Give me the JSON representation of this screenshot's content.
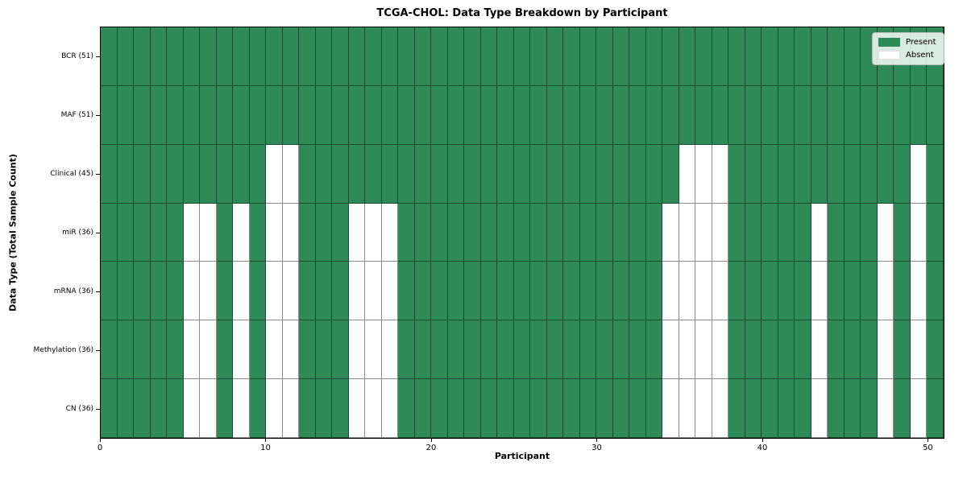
{
  "chart_data": {
    "type": "heatmap",
    "title": "TCGA-CHOL: Data Type Breakdown by Participant",
    "xlabel": "Participant",
    "ylabel": "Data Type (Total Sample Count)",
    "n_participants": 51,
    "xlim": [
      0,
      51
    ],
    "x_ticks": [
      0,
      10,
      20,
      30,
      40,
      50
    ],
    "grid": "cell-edges",
    "legend_position": "upper-right",
    "legend": {
      "present_label": "Present",
      "absent_label": "Absent"
    },
    "colors": {
      "present": "#2e8b57",
      "absent": "#ffffff",
      "cell_edge": "rgba(0,0,0,0.45)"
    },
    "rows": [
      {
        "name": "BCR",
        "label": "BCR (51)",
        "total": 51,
        "absent_participants": []
      },
      {
        "name": "MAF",
        "label": "MAF (51)",
        "total": 51,
        "absent_participants": []
      },
      {
        "name": "Clinical",
        "label": "Clinical (45)",
        "total": 45,
        "absent_participants": [
          10,
          11,
          35,
          36,
          37,
          49
        ]
      },
      {
        "name": "miR",
        "label": "miR (36)",
        "total": 36,
        "absent_participants": [
          5,
          6,
          8,
          10,
          11,
          15,
          16,
          17,
          34,
          35,
          36,
          37,
          43,
          47,
          49
        ]
      },
      {
        "name": "mRNA",
        "label": "mRNA (36)",
        "total": 36,
        "absent_participants": [
          5,
          6,
          8,
          10,
          11,
          15,
          16,
          17,
          34,
          35,
          36,
          37,
          43,
          47,
          49
        ]
      },
      {
        "name": "Methylation",
        "label": "Methylation (36)",
        "total": 36,
        "absent_participants": [
          5,
          6,
          8,
          10,
          11,
          15,
          16,
          17,
          34,
          35,
          36,
          37,
          43,
          47,
          49
        ]
      },
      {
        "name": "CN",
        "label": "CN (36)",
        "total": 36,
        "absent_participants": [
          5,
          6,
          8,
          10,
          11,
          15,
          16,
          17,
          34,
          35,
          36,
          37,
          43,
          47,
          49
        ]
      }
    ]
  }
}
